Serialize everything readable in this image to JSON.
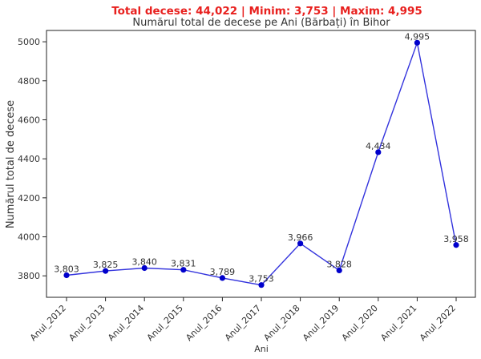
{
  "chart_data": {
    "type": "line",
    "suptitle": "Total decese: 44,022 | Minim: 3,753 | Maxim: 4,995",
    "title": "Numărul total de decese pe Ani (Bărbați) în Bihor",
    "xlabel": "Ani",
    "ylabel": "Numărul total de decese",
    "categories": [
      "Anul_2012",
      "Anul_2013",
      "Anul_2014",
      "Anul_2015",
      "Anul_2016",
      "Anul_2017",
      "Anul_2018",
      "Anul_2019",
      "Anul_2020",
      "Anul_2021",
      "Anul_2022"
    ],
    "values": [
      3803,
      3825,
      3840,
      3831,
      3789,
      3753,
      3966,
      3828,
      4434,
      4995,
      3958
    ],
    "data_labels": [
      "3,803",
      "3,825",
      "3,840",
      "3,831",
      "3,789",
      "3,753",
      "3,966",
      "3,828",
      "4,434",
      "4,995",
      "3,958"
    ],
    "yticks": [
      3800,
      4000,
      4200,
      4400,
      4600,
      4800,
      5000
    ],
    "ylim": [
      3690,
      5058
    ],
    "grid": false,
    "line_color": "#3333dd",
    "marker_color": "#0000cc",
    "suptitle_color": "#e8201e"
  }
}
